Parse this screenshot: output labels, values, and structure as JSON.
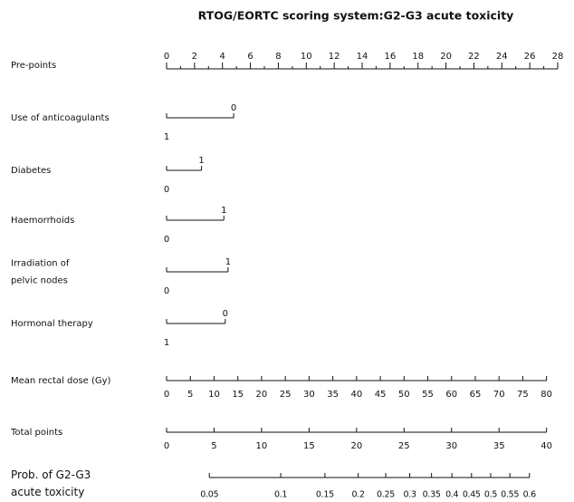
{
  "chart_data": {
    "type": "nomogram",
    "title": "RTOG/EORTC scoring system:G2-G3 acute toxicity",
    "rows": [
      {
        "kind": "points",
        "label": [
          "Pre-points"
        ],
        "lim": [
          0,
          28
        ],
        "ticks": [
          0,
          2,
          4,
          6,
          8,
          10,
          12,
          14,
          16,
          18,
          20,
          22,
          24,
          26,
          28
        ],
        "minor_ticks": [
          1,
          3,
          5,
          7,
          9,
          11,
          13,
          15,
          17,
          19,
          21,
          23,
          25,
          27
        ]
      },
      {
        "kind": "categorical",
        "label": [
          "Use of anticoagulants"
        ],
        "levels": [
          {
            "label": "1",
            "points": 0
          },
          {
            "label": "0",
            "points": 4.8
          }
        ]
      },
      {
        "kind": "categorical",
        "label": [
          "Diabetes"
        ],
        "levels": [
          {
            "label": "0",
            "points": 0
          },
          {
            "label": "1",
            "points": 2.5
          }
        ]
      },
      {
        "kind": "categorical",
        "label": [
          "Haemorrhoids"
        ],
        "levels": [
          {
            "label": "0",
            "points": 0
          },
          {
            "label": "1",
            "points": 4.1
          }
        ]
      },
      {
        "kind": "categorical",
        "label": [
          "Irradiation of",
          "pelvic nodes"
        ],
        "levels": [
          {
            "label": "0",
            "points": 0
          },
          {
            "label": "1",
            "points": 4.4
          }
        ]
      },
      {
        "kind": "categorical",
        "label": [
          "Hormonal therapy"
        ],
        "levels": [
          {
            "label": "1",
            "points": 0
          },
          {
            "label": "0",
            "points": 4.2
          }
        ]
      },
      {
        "kind": "continuous",
        "label": [
          "Mean rectal dose (Gy)"
        ],
        "lim": [
          0,
          80
        ],
        "points_lim": [
          0,
          27.2
        ],
        "ticks": [
          0,
          5,
          10,
          15,
          20,
          25,
          30,
          35,
          40,
          45,
          50,
          55,
          60,
          65,
          70,
          75,
          80
        ]
      },
      {
        "kind": "continuous",
        "label": [
          "Total points"
        ],
        "lim": [
          0,
          40
        ],
        "points_lim": [
          0,
          27.2
        ],
        "ticks": [
          0,
          5,
          10,
          15,
          20,
          25,
          30,
          35,
          40
        ]
      },
      {
        "kind": "probability",
        "label": [
          "Prob. of G2-G3",
          "acute toxicity"
        ],
        "scale": "logit",
        "lim": [
          0.05,
          0.6
        ],
        "total_points_lim": [
          4.5,
          38.2
        ],
        "ticks": [
          0.05,
          0.1,
          0.15,
          0.2,
          0.25,
          0.3,
          0.35,
          0.4,
          0.45,
          0.5,
          0.55,
          0.6
        ]
      }
    ]
  }
}
